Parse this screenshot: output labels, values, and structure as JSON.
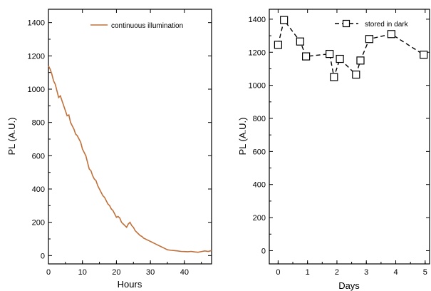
{
  "chart_data": [
    {
      "type": "line",
      "xlabel": "Hours",
      "ylabel": "PL (A.U.)",
      "xlim": [
        0,
        48
      ],
      "ylim": [
        -50,
        1480
      ],
      "xticks": [
        0,
        10,
        20,
        30,
        40
      ],
      "yticks": [
        0,
        200,
        400,
        600,
        800,
        1000,
        1200,
        1400
      ],
      "grid": false,
      "legend_position": "top-right",
      "series": [
        {
          "name": "continuous illumination",
          "color": "#c0703a",
          "marker": "none",
          "x": [
            0,
            0.5,
            1,
            1.5,
            2,
            2.5,
            3,
            3.5,
            4,
            4.5,
            5,
            5.5,
            6,
            6.5,
            7,
            7.5,
            8,
            8.5,
            9,
            9.5,
            10,
            10.5,
            11,
            11.5,
            12,
            12.5,
            13,
            13.5,
            14,
            14.5,
            15,
            15.5,
            16,
            16.5,
            17,
            17.5,
            18,
            18.5,
            19,
            19.5,
            20,
            20.5,
            21,
            21.5,
            22,
            22.5,
            23,
            23.5,
            24,
            24.5,
            25,
            25.5,
            26,
            26.5,
            27,
            27.5,
            28,
            28.5,
            29,
            29.5,
            30,
            31,
            32,
            33,
            34,
            35,
            36,
            37,
            38,
            39,
            40,
            41,
            42,
            43,
            44,
            45,
            46,
            47,
            48
          ],
          "y": [
            1140,
            1120,
            1090,
            1050,
            1030,
            990,
            950,
            960,
            930,
            900,
            870,
            840,
            845,
            800,
            780,
            760,
            730,
            720,
            700,
            680,
            640,
            620,
            600,
            560,
            520,
            510,
            480,
            460,
            450,
            420,
            400,
            380,
            360,
            350,
            330,
            310,
            300,
            280,
            270,
            250,
            230,
            235,
            225,
            200,
            190,
            180,
            170,
            190,
            200,
            180,
            170,
            150,
            140,
            130,
            120,
            115,
            105,
            100,
            95,
            90,
            85,
            75,
            65,
            55,
            45,
            35,
            32,
            30,
            28,
            25,
            24,
            23,
            25,
            22,
            20,
            24,
            28,
            25,
            30
          ]
        }
      ]
    },
    {
      "type": "line",
      "xlabel": "Days",
      "ylabel": "PL (A.U.)",
      "xlim": [
        -0.3,
        5.15
      ],
      "ylim": [
        -80,
        1460
      ],
      "xticks": [
        0,
        1,
        2,
        3,
        4,
        5
      ],
      "yticks": [
        0,
        200,
        400,
        600,
        800,
        1000,
        1200,
        1400
      ],
      "grid": false,
      "legend_position": "top-right",
      "series": [
        {
          "name": "stored in dark",
          "color": "#000000",
          "marker": "open-square",
          "line_style": "dashed",
          "x": [
            0,
            0.2,
            0.75,
            0.95,
            1.75,
            1.9,
            2.1,
            2.65,
            2.8,
            3.1,
            3.85,
            4.95
          ],
          "y": [
            1245,
            1395,
            1265,
            1175,
            1190,
            1050,
            1160,
            1065,
            1150,
            1280,
            1310,
            1185
          ]
        }
      ]
    }
  ]
}
